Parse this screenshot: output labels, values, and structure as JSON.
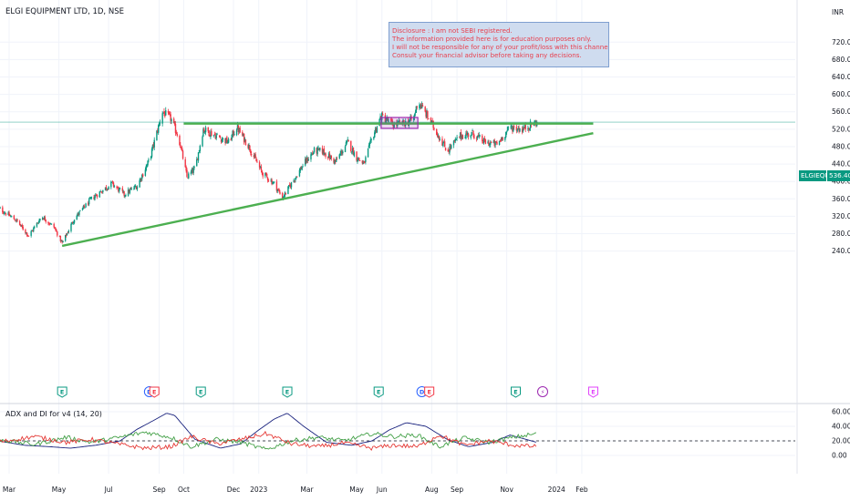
{
  "header": {
    "symbol_title": "ELGI EQUIPMENT LTD, 1D, NSE",
    "currency": "INR"
  },
  "disclosure": {
    "lines": [
      "Disclosure : I am not SEBI registered.",
      "The information provided here is for education purposes only.",
      "I will not be responsible for any of your profit/loss with this channel suggestions.",
      "Consult your financial advisor before taking any decisions."
    ]
  },
  "price_tags": {
    "symbol": "ELGIEQUIP",
    "last_price": "536.40"
  },
  "indicator": {
    "title": "ADX and DI for v4 (14, 20)"
  },
  "colors": {
    "up": "#089981",
    "down": "#f23645",
    "trendline": "#4caf50",
    "box_border": "#9c27b0",
    "adx": "#1a237e",
    "di_plus": "#43a047",
    "di_minus": "#e53935",
    "disclosure_text": "#e8404e",
    "disclosure_bg": "#cfdcef"
  },
  "chart_data": [
    {
      "type": "candlestick",
      "title": "ELGI EQUIPMENT LTD, 1D, NSE",
      "ylim": [
        230,
        750
      ],
      "yticks": [
        "720.00",
        "680.00",
        "640.00",
        "600.00",
        "560.00",
        "520.00",
        "480.00",
        "440.00",
        "400.00",
        "360.00",
        "320.00",
        "280.00",
        "240.00"
      ],
      "yticks_values": [
        720,
        680,
        640,
        600,
        560,
        520,
        480,
        440,
        400,
        360,
        320,
        280,
        240
      ],
      "xticks": [
        {
          "label": "Mar",
          "date": "2022-03-01"
        },
        {
          "label": "May",
          "date": "2022-05-01"
        },
        {
          "label": "Jul",
          "date": "2022-07-01"
        },
        {
          "label": "Sep",
          "date": "2022-09-01"
        },
        {
          "label": "Oct",
          "date": "2022-10-01"
        },
        {
          "label": "Dec",
          "date": "2022-12-01"
        },
        {
          "label": "2023",
          "date": "2023-01-01"
        },
        {
          "label": "Mar",
          "date": "2023-03-01"
        },
        {
          "label": "May",
          "date": "2023-05-01"
        },
        {
          "label": "Jun",
          "date": "2023-06-01"
        },
        {
          "label": "Aug",
          "date": "2023-08-01"
        },
        {
          "label": "Sep",
          "date": "2023-09-01"
        },
        {
          "label": "Nov",
          "date": "2023-11-01"
        },
        {
          "label": "2024",
          "date": "2024-01-01"
        },
        {
          "label": "Feb",
          "date": "2024-02-01"
        }
      ],
      "price_path": [
        {
          "date": "2022-02-15",
          "close": 340
        },
        {
          "date": "2022-03-10",
          "close": 310
        },
        {
          "date": "2022-03-25",
          "close": 275
        },
        {
          "date": "2022-04-10",
          "close": 320
        },
        {
          "date": "2022-04-25",
          "close": 295
        },
        {
          "date": "2022-05-05",
          "close": 258
        },
        {
          "date": "2022-05-20",
          "close": 315
        },
        {
          "date": "2022-06-10",
          "close": 360
        },
        {
          "date": "2022-06-20",
          "close": 375
        },
        {
          "date": "2022-07-05",
          "close": 395
        },
        {
          "date": "2022-07-20",
          "close": 370
        },
        {
          "date": "2022-08-05",
          "close": 390
        },
        {
          "date": "2022-08-20",
          "close": 450
        },
        {
          "date": "2022-09-05",
          "close": 560
        },
        {
          "date": "2022-09-15",
          "close": 545
        },
        {
          "date": "2022-09-25",
          "close": 500
        },
        {
          "date": "2022-10-05",
          "close": 410
        },
        {
          "date": "2022-10-15",
          "close": 430
        },
        {
          "date": "2022-10-25",
          "close": 520
        },
        {
          "date": "2022-11-10",
          "close": 505
        },
        {
          "date": "2022-11-25",
          "close": 490
        },
        {
          "date": "2022-12-05",
          "close": 525
        },
        {
          "date": "2022-12-20",
          "close": 480
        },
        {
          "date": "2023-01-05",
          "close": 420
        },
        {
          "date": "2023-01-20",
          "close": 395
        },
        {
          "date": "2023-01-30",
          "close": 362
        },
        {
          "date": "2023-02-10",
          "close": 395
        },
        {
          "date": "2023-02-25",
          "close": 440
        },
        {
          "date": "2023-03-10",
          "close": 470
        },
        {
          "date": "2023-03-20",
          "close": 470
        },
        {
          "date": "2023-04-05",
          "close": 445
        },
        {
          "date": "2023-04-20",
          "close": 490
        },
        {
          "date": "2023-05-01",
          "close": 455
        },
        {
          "date": "2023-05-10",
          "close": 440
        },
        {
          "date": "2023-05-20",
          "close": 500
        },
        {
          "date": "2023-05-31",
          "close": 550
        },
        {
          "date": "2023-06-15",
          "close": 530
        },
        {
          "date": "2023-07-01",
          "close": 535
        },
        {
          "date": "2023-07-10",
          "close": 545
        },
        {
          "date": "2023-07-15",
          "close": 585
        },
        {
          "date": "2023-07-25",
          "close": 555
        },
        {
          "date": "2023-08-05",
          "close": 520
        },
        {
          "date": "2023-08-20",
          "close": 470
        },
        {
          "date": "2023-09-05",
          "close": 505
        },
        {
          "date": "2023-09-20",
          "close": 510
        },
        {
          "date": "2023-10-05",
          "close": 490
        },
        {
          "date": "2023-10-20",
          "close": 485
        },
        {
          "date": "2023-11-05",
          "close": 525
        },
        {
          "date": "2023-11-20",
          "close": 520
        },
        {
          "date": "2023-12-01",
          "close": 530
        },
        {
          "date": "2023-12-08",
          "close": 536.4
        }
      ],
      "last_price": 536.4,
      "drawings": {
        "horizontal_resistance": {
          "start_date": "2022-10-01",
          "end_date": "2024-02-15",
          "price": 533
        },
        "ascending_support": {
          "start_date": "2022-05-05",
          "start_price": 252,
          "end_date": "2024-02-15",
          "end_price": 511
        },
        "consolidation_box": {
          "start_date": "2023-05-31",
          "end_date": "2023-07-15",
          "price_low": 522,
          "price_high": 547
        }
      },
      "event_markers": [
        {
          "date": "2022-05-05",
          "label": "E",
          "kind": "earnings"
        },
        {
          "date": "2022-08-20",
          "label": "D",
          "kind": "dividend"
        },
        {
          "date": "2022-08-26",
          "label": "E",
          "kind": "earnings-past"
        },
        {
          "date": "2022-10-22",
          "label": "E",
          "kind": "earnings"
        },
        {
          "date": "2023-02-05",
          "label": "E",
          "kind": "earnings"
        },
        {
          "date": "2023-05-28",
          "label": "E",
          "kind": "earnings"
        },
        {
          "date": "2023-07-20",
          "label": "D",
          "kind": "dividend"
        },
        {
          "date": "2023-07-29",
          "label": "E",
          "kind": "earnings-past"
        },
        {
          "date": "2023-11-12",
          "label": "E",
          "kind": "earnings"
        },
        {
          "date": "2023-12-15",
          "label": "⚡",
          "kind": "split"
        },
        {
          "date": "2024-02-15",
          "label": "E",
          "kind": "earnings-future"
        }
      ]
    },
    {
      "type": "line",
      "title": "ADX and DI for v4 (14, 20)",
      "ylim": [
        0,
        65
      ],
      "yticks": [
        "60.00",
        "40.00",
        "20.00",
        "0.00"
      ],
      "yticks_values": [
        60,
        40,
        20,
        0
      ],
      "reference_level": 20,
      "series": [
        {
          "name": "ADX",
          "points": [
            {
              "date": "2022-02-15",
              "value": 20
            },
            {
              "date": "2022-03-20",
              "value": 14
            },
            {
              "date": "2022-04-20",
              "value": 12
            },
            {
              "date": "2022-05-15",
              "value": 10
            },
            {
              "date": "2022-06-15",
              "value": 14
            },
            {
              "date": "2022-07-15",
              "value": 20
            },
            {
              "date": "2022-08-05",
              "value": 36
            },
            {
              "date": "2022-08-25",
              "value": 48
            },
            {
              "date": "2022-09-10",
              "value": 58
            },
            {
              "date": "2022-09-20",
              "value": 55
            },
            {
              "date": "2022-10-15",
              "value": 22
            },
            {
              "date": "2022-11-15",
              "value": 10
            },
            {
              "date": "2022-12-10",
              "value": 16
            },
            {
              "date": "2023-01-01",
              "value": 35
            },
            {
              "date": "2023-01-20",
              "value": 50
            },
            {
              "date": "2023-02-05",
              "value": 58
            },
            {
              "date": "2023-02-25",
              "value": 40
            },
            {
              "date": "2023-03-25",
              "value": 18
            },
            {
              "date": "2023-04-25",
              "value": 14
            },
            {
              "date": "2023-05-20",
              "value": 20
            },
            {
              "date": "2023-06-10",
              "value": 35
            },
            {
              "date": "2023-07-01",
              "value": 45
            },
            {
              "date": "2023-07-25",
              "value": 40
            },
            {
              "date": "2023-08-20",
              "value": 22
            },
            {
              "date": "2023-09-15",
              "value": 12
            },
            {
              "date": "2023-10-15",
              "value": 18
            },
            {
              "date": "2023-11-05",
              "value": 28
            },
            {
              "date": "2023-11-25",
              "value": 22
            },
            {
              "date": "2023-12-08",
              "value": 18
            }
          ]
        },
        {
          "name": "DI+",
          "points": [
            {
              "date": "2022-02-15",
              "value": 22
            },
            {
              "date": "2022-04-01",
              "value": 15
            },
            {
              "date": "2022-05-10",
              "value": 25
            },
            {
              "date": "2022-06-10",
              "value": 18
            },
            {
              "date": "2022-07-10",
              "value": 24
            },
            {
              "date": "2022-08-15",
              "value": 32
            },
            {
              "date": "2022-09-15",
              "value": 25
            },
            {
              "date": "2022-10-10",
              "value": 12
            },
            {
              "date": "2022-11-10",
              "value": 22
            },
            {
              "date": "2022-12-10",
              "value": 18
            },
            {
              "date": "2023-01-10",
              "value": 8
            },
            {
              "date": "2023-02-10",
              "value": 20
            },
            {
              "date": "2023-03-15",
              "value": 25
            },
            {
              "date": "2023-04-15",
              "value": 20
            },
            {
              "date": "2023-05-20",
              "value": 30
            },
            {
              "date": "2023-06-15",
              "value": 26
            },
            {
              "date": "2023-07-15",
              "value": 28
            },
            {
              "date": "2023-08-10",
              "value": 12
            },
            {
              "date": "2023-09-10",
              "value": 24
            },
            {
              "date": "2023-10-10",
              "value": 18
            },
            {
              "date": "2023-11-10",
              "value": 25
            },
            {
              "date": "2023-12-08",
              "value": 30
            }
          ]
        },
        {
          "name": "DI-",
          "points": [
            {
              "date": "2022-02-15",
              "value": 18
            },
            {
              "date": "2022-04-01",
              "value": 26
            },
            {
              "date": "2022-05-10",
              "value": 18
            },
            {
              "date": "2022-06-10",
              "value": 22
            },
            {
              "date": "2022-07-10",
              "value": 16
            },
            {
              "date": "2022-08-15",
              "value": 10
            },
            {
              "date": "2022-09-15",
              "value": 12
            },
            {
              "date": "2022-10-10",
              "value": 26
            },
            {
              "date": "2022-11-10",
              "value": 16
            },
            {
              "date": "2022-12-10",
              "value": 22
            },
            {
              "date": "2023-01-10",
              "value": 30
            },
            {
              "date": "2023-02-10",
              "value": 16
            },
            {
              "date": "2023-03-15",
              "value": 12
            },
            {
              "date": "2023-04-15",
              "value": 17
            },
            {
              "date": "2023-05-20",
              "value": 10
            },
            {
              "date": "2023-06-15",
              "value": 14
            },
            {
              "date": "2023-07-15",
              "value": 12
            },
            {
              "date": "2023-08-10",
              "value": 28
            },
            {
              "date": "2023-09-10",
              "value": 14
            },
            {
              "date": "2023-10-10",
              "value": 20
            },
            {
              "date": "2023-11-10",
              "value": 14
            },
            {
              "date": "2023-12-08",
              "value": 12
            }
          ]
        }
      ]
    }
  ]
}
